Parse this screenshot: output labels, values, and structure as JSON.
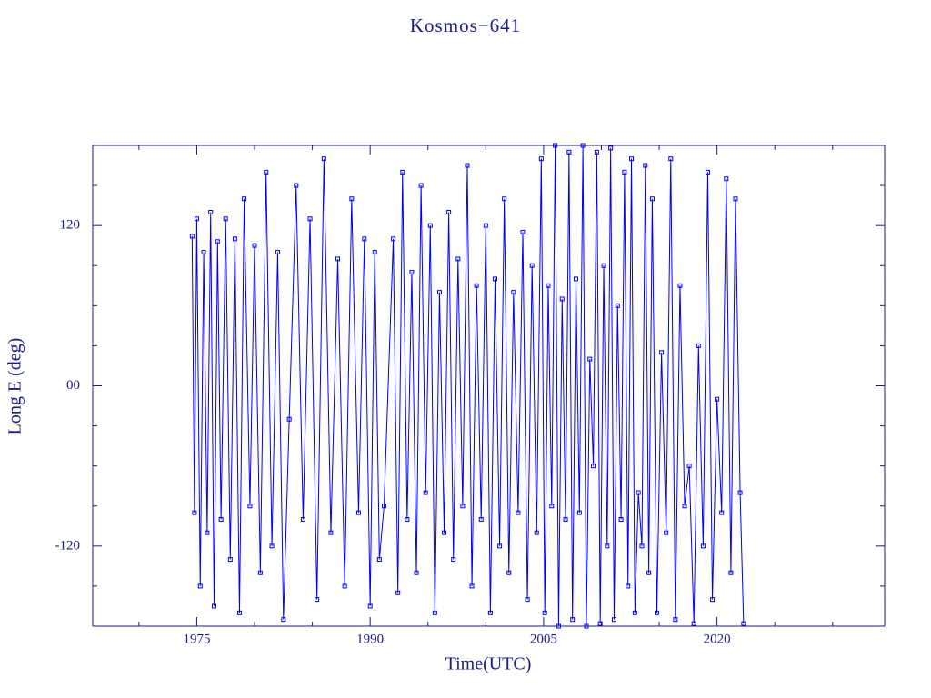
{
  "chart_data": {
    "type": "line",
    "title": "Kosmos−641",
    "x_label": "Time(UTC)",
    "y_label": "Long E (deg)",
    "color": "#0000ff",
    "frame_color": "#1a1a8c",
    "marker": "square",
    "xlim": [
      1966,
      2034.5
    ],
    "ylim": [
      -180,
      180
    ],
    "xticks": [
      1975,
      1990,
      2005,
      2020
    ],
    "xminorticks": [
      1970,
      1980,
      1985,
      1995,
      2000,
      2010,
      2015,
      2025,
      2030
    ],
    "yticks": [
      -120,
      {
        "value": 0,
        "label": "00"
      },
      120
    ],
    "yminorticks": [
      -150,
      -90,
      -60,
      -30,
      30,
      60,
      90,
      150
    ],
    "x": [
      1974.6,
      1974.8,
      1975.0,
      1975.3,
      1975.6,
      1975.9,
      1976.2,
      1976.5,
      1976.8,
      1977.1,
      1977.5,
      1977.9,
      1978.3,
      1978.7,
      1979.1,
      1979.6,
      1980.0,
      1980.5,
      1981.0,
      1981.5,
      1982.0,
      1982.5,
      1983.0,
      1983.6,
      1984.2,
      1984.8,
      1985.4,
      1986.0,
      1986.6,
      1987.2,
      1987.8,
      1988.4,
      1989.0,
      1989.5,
      1990.0,
      1990.4,
      1990.8,
      1991.2,
      1992.0,
      1992.4,
      1992.8,
      1993.2,
      1993.6,
      1994.0,
      1994.4,
      1994.8,
      1995.2,
      1995.6,
      1996.0,
      1996.4,
      1996.8,
      1997.2,
      1997.6,
      1998.0,
      1998.4,
      1998.8,
      1999.2,
      1999.6,
      2000.0,
      2000.4,
      2000.8,
      2001.2,
      2001.6,
      2002.0,
      2002.4,
      2002.8,
      2003.2,
      2003.6,
      2004.0,
      2004.4,
      2004.8,
      2005.1,
      2005.4,
      2005.7,
      2006.0,
      2006.3,
      2006.6,
      2006.9,
      2007.2,
      2007.5,
      2007.8,
      2008.1,
      2008.4,
      2008.7,
      2009.0,
      2009.3,
      2009.6,
      2009.9,
      2010.2,
      2010.5,
      2010.8,
      2011.1,
      2011.4,
      2011.7,
      2012.0,
      2012.3,
      2012.6,
      2012.9,
      2013.2,
      2013.5,
      2013.8,
      2014.1,
      2014.4,
      2014.8,
      2015.2,
      2015.6,
      2016.0,
      2016.4,
      2016.8,
      2017.2,
      2017.6,
      2018.0,
      2018.4,
      2018.8,
      2019.2,
      2019.6,
      2020.0,
      2020.4,
      2020.8,
      2021.2,
      2021.6,
      2022.0,
      2022.3
    ],
    "values": [
      112,
      -95,
      125,
      -150,
      100,
      -110,
      130,
      -165,
      108,
      -100,
      125,
      -130,
      110,
      -170,
      140,
      -90,
      105,
      -140,
      160,
      -120,
      100,
      -175,
      -25,
      150,
      -100,
      125,
      -160,
      170,
      -110,
      95,
      -150,
      140,
      -95,
      110,
      -165,
      100,
      -130,
      -90,
      110,
      -155,
      160,
      -100,
      85,
      -140,
      150,
      -80,
      120,
      -170,
      70,
      -110,
      130,
      -130,
      95,
      -90,
      165,
      -150,
      75,
      -100,
      120,
      -170,
      80,
      -120,
      140,
      -140,
      70,
      -95,
      115,
      -160,
      90,
      -110,
      170,
      -170,
      75,
      -90,
      180,
      -180,
      65,
      -100,
      175,
      -175,
      80,
      -95,
      180,
      -180,
      20,
      -60,
      175,
      -178,
      90,
      -120,
      178,
      -175,
      60,
      -100,
      160,
      -150,
      170,
      -170,
      -80,
      -120,
      165,
      -140,
      140,
      -170,
      25,
      -110,
      170,
      -175,
      75,
      -90,
      -60,
      -178,
      30,
      -120,
      160,
      -160,
      -10,
      -95,
      155,
      -140,
      140,
      -80,
      -178
    ]
  }
}
